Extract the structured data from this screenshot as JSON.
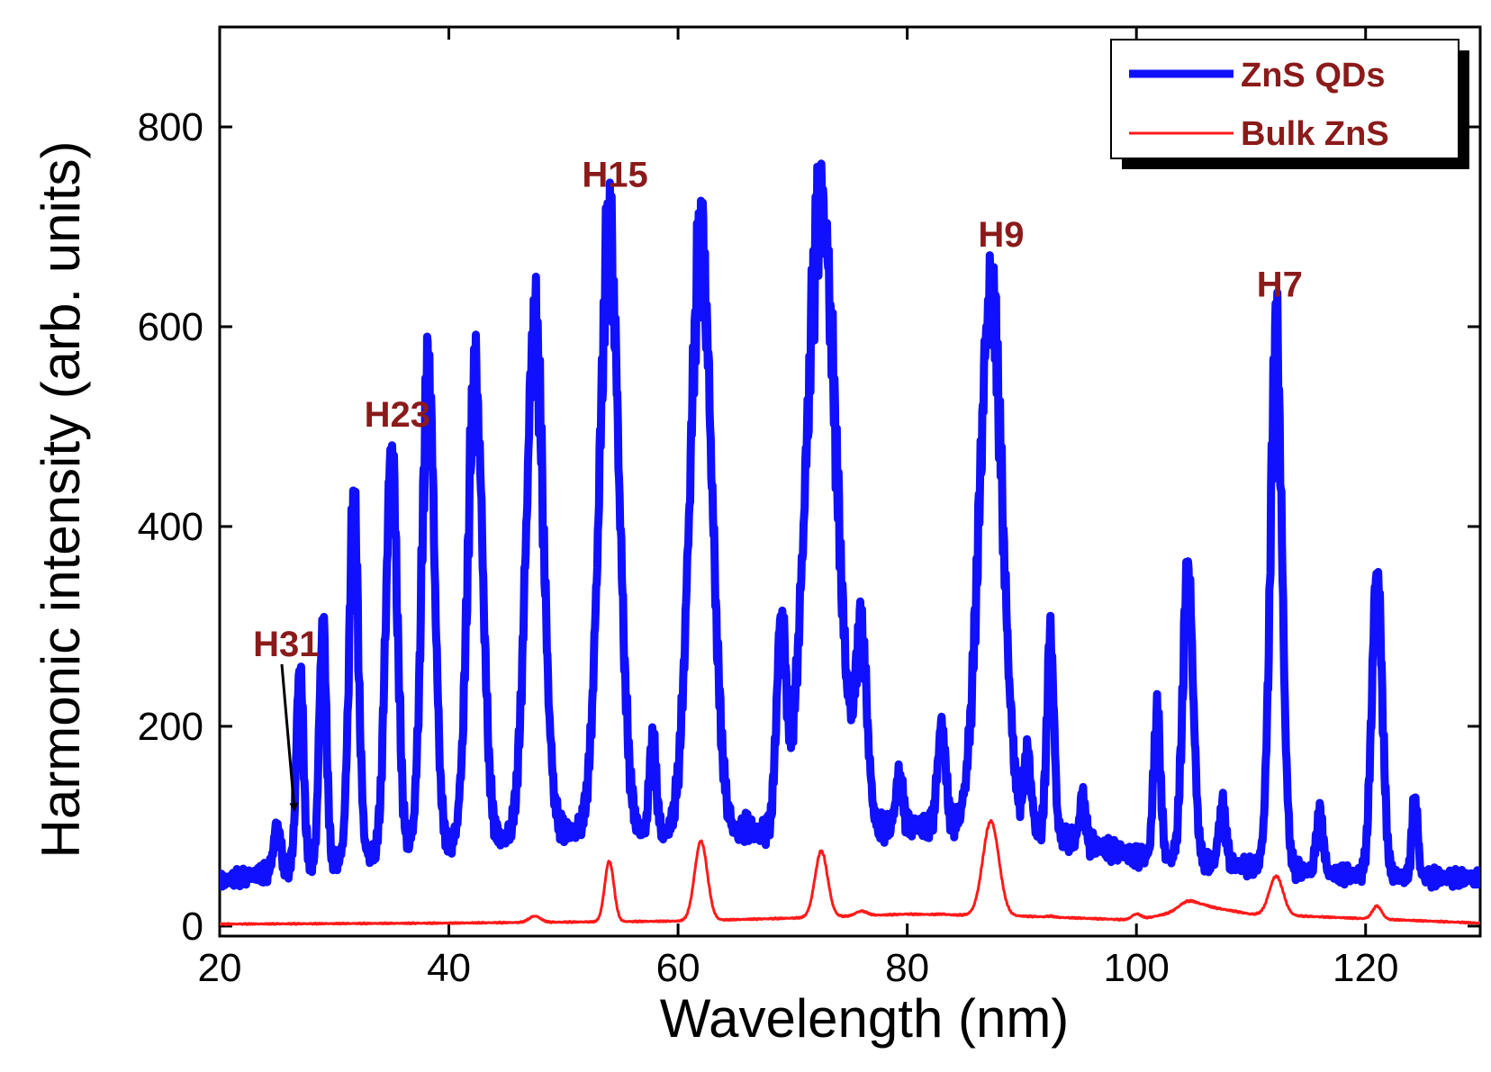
{
  "chart_data": {
    "type": "line",
    "xlabel": "Wavelength (nm)",
    "ylabel": "Harmonic intensity (arb. units)",
    "xlim": [
      20,
      130
    ],
    "ylim": [
      -10,
      900
    ],
    "xticks": [
      20,
      40,
      60,
      80,
      100,
      120
    ],
    "yticks": [
      0,
      200,
      400,
      600,
      800
    ],
    "colors": {
      "annotation": "#8b1a1a",
      "axis": "#000000"
    },
    "series": [
      {
        "name": "ZnS QDs",
        "color": "#1010ff",
        "baseline": [
          [
            20,
            45
          ],
          [
            30,
            65
          ],
          [
            40,
            80
          ],
          [
            50,
            95
          ],
          [
            60,
            90
          ],
          [
            70,
            95
          ],
          [
            80,
            100
          ],
          [
            90,
            100
          ],
          [
            100,
            70
          ],
          [
            110,
            60
          ],
          [
            120,
            50
          ],
          [
            130,
            48
          ]
        ],
        "peaks": [
          {
            "x": 25,
            "h": 100,
            "w": 0.3
          },
          {
            "x": 27,
            "h": 260,
            "w": 0.3
          },
          {
            "x": 29,
            "h": 305,
            "w": 0.3
          },
          {
            "x": 31.7,
            "h": 420,
            "w": 0.4
          },
          {
            "x": 35,
            "h": 475,
            "w": 0.5
          },
          {
            "x": 38.2,
            "h": 555,
            "w": 0.55
          },
          {
            "x": 42.3,
            "h": 550,
            "w": 0.65
          },
          {
            "x": 47.5,
            "h": 600,
            "w": 0.75
          },
          {
            "x": 54,
            "h": 690,
            "w": 0.85
          },
          {
            "x": 57.8,
            "h": 185,
            "w": 0.3
          },
          {
            "x": 62,
            "h": 680,
            "w": 0.95
          },
          {
            "x": 66,
            "h": 100,
            "w": 0.3
          },
          {
            "x": 69,
            "h": 295,
            "w": 0.4
          },
          {
            "x": 72.5,
            "h": 720,
            "w": 1.3
          },
          {
            "x": 76,
            "h": 280,
            "w": 0.5
          },
          {
            "x": 79.3,
            "h": 150,
            "w": 0.3
          },
          {
            "x": 83,
            "h": 200,
            "w": 0.35
          },
          {
            "x": 87.3,
            "h": 635,
            "w": 1.0
          },
          {
            "x": 90.5,
            "h": 170,
            "w": 0.3
          },
          {
            "x": 92.5,
            "h": 290,
            "w": 0.3
          },
          {
            "x": 95.3,
            "h": 130,
            "w": 0.25
          },
          {
            "x": 101.8,
            "h": 210,
            "w": 0.3
          },
          {
            "x": 104.5,
            "h": 355,
            "w": 0.45
          },
          {
            "x": 107.5,
            "h": 120,
            "w": 0.3
          },
          {
            "x": 112.2,
            "h": 590,
            "w": 0.5
          },
          {
            "x": 116,
            "h": 110,
            "w": 0.3
          },
          {
            "x": 121,
            "h": 355,
            "w": 0.45
          },
          {
            "x": 124.3,
            "h": 125,
            "w": 0.25
          }
        ]
      },
      {
        "name": "Bulk ZnS",
        "color": "#ff1a1a",
        "baseline": [
          [
            20,
            2
          ],
          [
            40,
            3
          ],
          [
            60,
            5
          ],
          [
            70,
            8
          ],
          [
            80,
            12
          ],
          [
            90,
            10
          ],
          [
            100,
            6
          ],
          [
            106,
            20
          ],
          [
            110,
            12
          ],
          [
            130,
            3
          ]
        ],
        "peaks": [
          {
            "x": 47.5,
            "h": 10,
            "w": 0.5
          },
          {
            "x": 54,
            "h": 65,
            "w": 0.4
          },
          {
            "x": 62,
            "h": 85,
            "w": 0.55
          },
          {
            "x": 72.5,
            "h": 75,
            "w": 0.55
          },
          {
            "x": 76,
            "h": 15,
            "w": 0.5
          },
          {
            "x": 79.3,
            "h": 10,
            "w": 0.4
          },
          {
            "x": 83,
            "h": 12,
            "w": 0.4
          },
          {
            "x": 87.3,
            "h": 105,
            "w": 0.7
          },
          {
            "x": 92.5,
            "h": 10,
            "w": 0.3
          },
          {
            "x": 100,
            "h": 12,
            "w": 0.4
          },
          {
            "x": 104.5,
            "h": 25,
            "w": 0.8
          },
          {
            "x": 106,
            "h": 15,
            "w": 0.6
          },
          {
            "x": 112.2,
            "h": 50,
            "w": 0.6
          },
          {
            "x": 121,
            "h": 20,
            "w": 0.4
          }
        ]
      }
    ],
    "annotations": [
      {
        "text": "H31",
        "x": 25.8,
        "y": 270
      },
      {
        "text": "H23",
        "x": 35.5,
        "y": 500
      },
      {
        "text": "H15",
        "x": 54.5,
        "y": 740
      },
      {
        "text": "H9",
        "x": 88.2,
        "y": 680
      },
      {
        "text": "H7",
        "x": 112.5,
        "y": 630
      }
    ],
    "legend": {
      "position": "top-right",
      "entries": [
        {
          "label": "ZnS QDs"
        },
        {
          "label": "Bulk ZnS"
        }
      ]
    }
  }
}
